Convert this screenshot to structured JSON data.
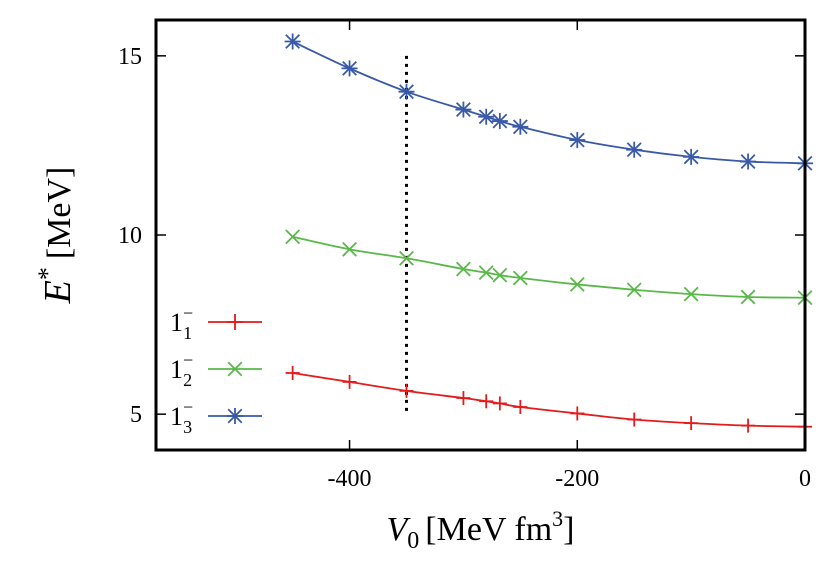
{
  "chart_data": {
    "type": "line",
    "xlabel": {
      "main": "V",
      "sub": "0",
      "unit_pre": "[MeV fm",
      "unit_sup": "3",
      "unit_post": "]"
    },
    "ylabel": {
      "main": "E",
      "sup": "*",
      "unit": "[MeV]"
    },
    "xlim": [
      -570,
      0
    ],
    "ylim": [
      4,
      16
    ],
    "xticks": [
      -400,
      -200,
      0
    ],
    "yticks": [
      5,
      10,
      15
    ],
    "grid": false,
    "legend_position": "left",
    "vline": {
      "x": -350,
      "y_from": 5,
      "y_to": 15,
      "style": "dotted"
    },
    "series": [
      {
        "name_base": "1",
        "name_sup": "−",
        "name_sub": "1",
        "color": "#e41a1c",
        "marker": "plus",
        "x": [
          -450,
          -400,
          -350,
          -300,
          -280,
          -268,
          -250,
          -200,
          -150,
          -100,
          -50,
          0
        ],
        "y": [
          6.15,
          5.9,
          5.65,
          5.45,
          5.36,
          5.3,
          5.2,
          5.02,
          4.85,
          4.75,
          4.68,
          4.65
        ]
      },
      {
        "name_base": "1",
        "name_sup": "−",
        "name_sub": "2",
        "color": "#5ab84a",
        "marker": "cross",
        "x": [
          -450,
          -400,
          -350,
          -300,
          -280,
          -268,
          -250,
          -200,
          -150,
          -100,
          -50,
          0
        ],
        "y": [
          9.95,
          9.6,
          9.35,
          9.05,
          8.95,
          8.88,
          8.8,
          8.62,
          8.47,
          8.35,
          8.27,
          8.25
        ]
      },
      {
        "name_base": "1",
        "name_sup": "−",
        "name_sub": "3",
        "color": "#3a5aa8",
        "marker": "asterisk",
        "x": [
          -450,
          -400,
          -350,
          -300,
          -280,
          -268,
          -250,
          -200,
          -150,
          -100,
          -50,
          0
        ],
        "y": [
          15.4,
          14.65,
          14.0,
          13.5,
          13.3,
          13.18,
          13.02,
          12.65,
          12.38,
          12.18,
          12.05,
          12.0
        ]
      }
    ]
  }
}
